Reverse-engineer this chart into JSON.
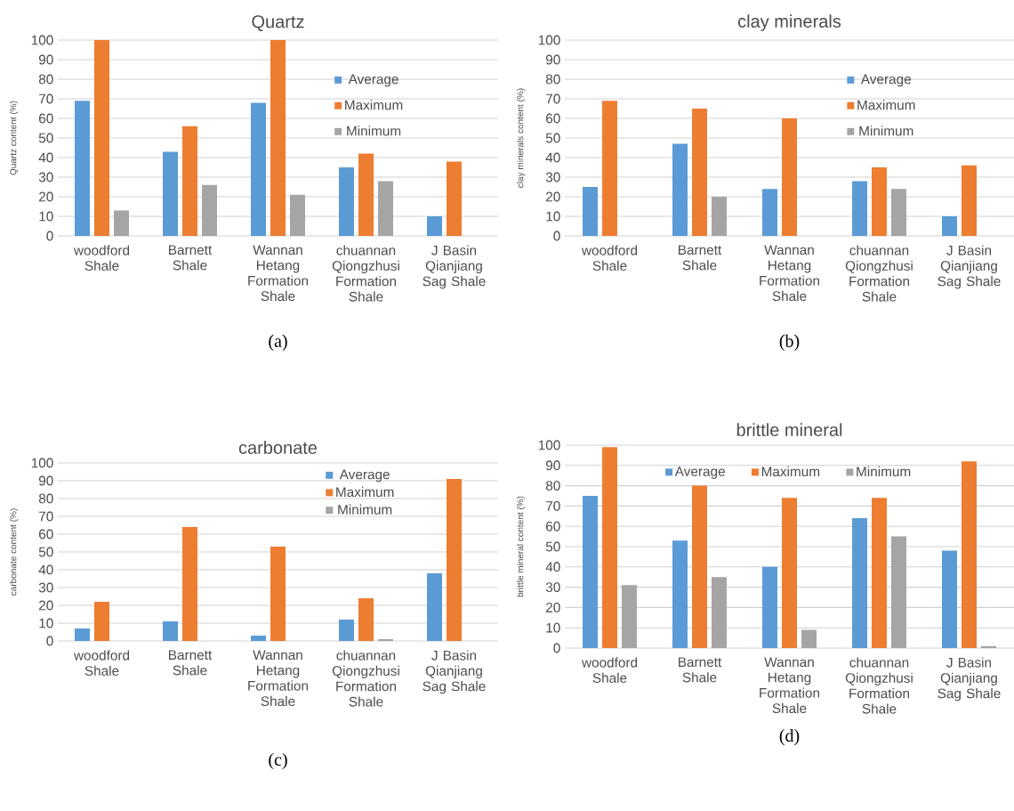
{
  "chart_data": [
    {
      "type": "bar",
      "title": "Quartz",
      "ylabel": "Quartz content (%)",
      "categories": [
        "woodford Shale",
        "Barnett Shale",
        "Wannan Hetang Formation Shale",
        "chuannan Qiongzhusi Formation Shale",
        "J Basin Qianjiang Sag Shale"
      ],
      "series": [
        {
          "name": "Average",
          "color": "#5b9bd5",
          "values": [
            69,
            43,
            68,
            35,
            10
          ]
        },
        {
          "name": "Maximum",
          "color": "#ed7d31",
          "values": [
            100,
            56,
            100,
            42,
            38
          ]
        },
        {
          "name": "Minimum",
          "color": "#a5a5a5",
          "values": [
            13,
            26,
            21,
            28,
            null
          ]
        }
      ],
      "ylim": [
        0,
        100
      ],
      "yticks": [
        0,
        10,
        20,
        30,
        40,
        50,
        60,
        70,
        80,
        90,
        100
      ],
      "grid": "y",
      "legend": "right",
      "annotations": [
        "(a)"
      ]
    },
    {
      "type": "bar",
      "title": "clay minerals",
      "ylabel": "clay minerals content (%)",
      "categories": [
        "woodford Shale",
        "Barnett Shale",
        "Wannan Hetang Formation Shale",
        "chuannan Qiongzhusi Formation Shale",
        "J Basin Qianjiang Sag Shale"
      ],
      "series": [
        {
          "name": "Average",
          "color": "#5b9bd5",
          "values": [
            25,
            47,
            24,
            28,
            10
          ]
        },
        {
          "name": "Maximum",
          "color": "#ed7d31",
          "values": [
            69,
            65,
            60,
            35,
            36
          ]
        },
        {
          "name": "Minimum",
          "color": "#a5a5a5",
          "values": [
            null,
            20,
            null,
            24,
            null
          ]
        }
      ],
      "ylim": [
        0,
        100
      ],
      "yticks": [
        0,
        10,
        20,
        30,
        40,
        50,
        60,
        70,
        80,
        90,
        100
      ],
      "grid": "y",
      "legend": "right",
      "annotations": [
        "(b)"
      ]
    },
    {
      "type": "bar",
      "title": "carbonate",
      "ylabel": "carbonate content (%)",
      "categories": [
        "woodford Shale",
        "Barnett Shale",
        "Wannan Hetang Formation Shale",
        "chuannan Qiongzhusi Formation Shale",
        "J Basin Qianjiang Sag Shale"
      ],
      "series": [
        {
          "name": "Average",
          "color": "#5b9bd5",
          "values": [
            7,
            11,
            3,
            12,
            38
          ]
        },
        {
          "name": "Maximum",
          "color": "#ed7d31",
          "values": [
            22,
            64,
            53,
            24,
            91
          ]
        },
        {
          "name": "Minimum",
          "color": "#a5a5a5",
          "values": [
            null,
            null,
            null,
            1,
            null
          ]
        }
      ],
      "ylim": [
        0,
        100
      ],
      "yticks": [
        0,
        10,
        20,
        30,
        40,
        50,
        60,
        70,
        80,
        90,
        100
      ],
      "grid": "y",
      "legend": "top right",
      "annotations": [
        "(c)"
      ]
    },
    {
      "type": "bar",
      "title": "brittle mineral",
      "ylabel": "brittle mineral content (%)",
      "categories": [
        "woodford Shale",
        "Barnett Shale",
        "Wannan Hetang Formation Shale",
        "chuannan Qiongzhusi Formation Shale",
        "J Basin Qianjiang Sag Shale"
      ],
      "series": [
        {
          "name": "Average",
          "color": "#5b9bd5",
          "values": [
            75,
            53,
            40,
            64,
            48
          ]
        },
        {
          "name": "Maximum",
          "color": "#ed7d31",
          "values": [
            99,
            80,
            74,
            74,
            92
          ]
        },
        {
          "name": "Minimum",
          "color": "#a5a5a5",
          "values": [
            31,
            35,
            9,
            55,
            1
          ]
        }
      ],
      "ylim": [
        0,
        100
      ],
      "yticks": [
        0,
        10,
        20,
        30,
        40,
        50,
        60,
        70,
        80,
        90,
        100
      ],
      "grid": "y",
      "legend": "top",
      "annotations": [
        "(d)"
      ]
    }
  ]
}
